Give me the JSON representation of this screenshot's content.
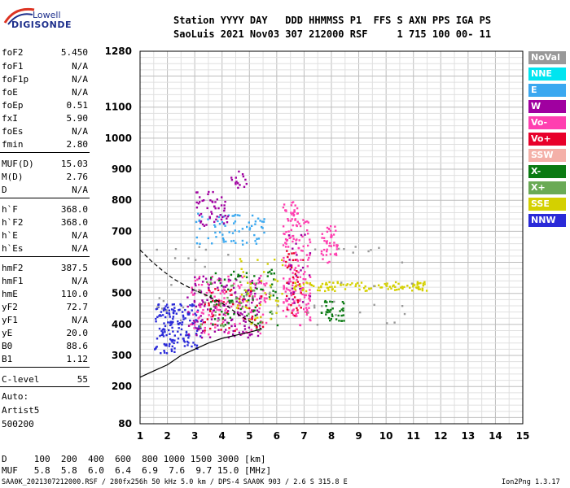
{
  "brand": {
    "line1": "Lowell",
    "line2": "DIGISONDE"
  },
  "header": {
    "row1": "Station YYYY DAY   DDD HHMMSS P1  FFS S AXN PPS IGA PS",
    "row2": "SaoLuis 2021 Nov03 307 212000 RSF     1 715 100 00- 11"
  },
  "params": [
    {
      "name": "foF2",
      "value": "5.450"
    },
    {
      "name": "foF1",
      "value": "N/A"
    },
    {
      "name": "foF1p",
      "value": "N/A"
    },
    {
      "name": "foE",
      "value": "N/A"
    },
    {
      "name": "foEp",
      "value": "0.51"
    },
    {
      "name": "fxI",
      "value": "5.90"
    },
    {
      "name": "foEs",
      "value": "N/A"
    },
    {
      "name": "fmin",
      "value": "2.80"
    },
    {
      "name": "MUF(D)",
      "value": "15.03"
    },
    {
      "name": "M(D)",
      "value": "2.76"
    },
    {
      "name": "D",
      "value": "N/A"
    },
    {
      "name": "h`F",
      "value": "368.0"
    },
    {
      "name": "h`F2",
      "value": "368.0"
    },
    {
      "name": "h`E",
      "value": "N/A"
    },
    {
      "name": "h`Es",
      "value": "N/A"
    },
    {
      "name": "hmF2",
      "value": "387.5"
    },
    {
      "name": "hmF1",
      "value": "N/A"
    },
    {
      "name": "hmE",
      "value": "110.0"
    },
    {
      "name": "yF2",
      "value": "72.7"
    },
    {
      "name": "yF1",
      "value": "N/A"
    },
    {
      "name": "yE",
      "value": "20.0"
    },
    {
      "name": "B0",
      "value": "88.6"
    },
    {
      "name": "B1",
      "value": "1.12"
    },
    {
      "name": "C-level",
      "value": "55"
    }
  ],
  "auto": {
    "line1": "Auto:",
    "line2": "Artist5",
    "line3": "500200"
  },
  "legend": [
    {
      "label": "NoVal",
      "color": "#999999"
    },
    {
      "label": "NNE",
      "color": "#00e5f0"
    },
    {
      "label": "E",
      "color": "#3aa8f0"
    },
    {
      "label": "W",
      "color": "#a000a0"
    },
    {
      "label": "Vo-",
      "color": "#ff3fb0"
    },
    {
      "label": "Vo+",
      "color": "#e8002a"
    },
    {
      "label": "SSW",
      "color": "#f4b0a8"
    },
    {
      "label": "X-",
      "color": "#0a7a12"
    },
    {
      "label": "X+",
      "color": "#6aaa55"
    },
    {
      "label": "SSE",
      "color": "#d4d000"
    },
    {
      "label": "NNW",
      "color": "#2a2ad8"
    }
  ],
  "muf_table": {
    "d_row": "D     100  200  400  600  800 1000 1500 3000 [km]",
    "muf_row": "MUF   5.8  5.8  6.0  6.4  6.9  7.6  9.7 15.0 [MHz]"
  },
  "footer": {
    "left": "SAA0K_2021307212000.RSF / 280fx256h 50 kHz 5.0 km / DPS-4 SAA0K 903 / 2.6 S 315.8 E",
    "right": "Ion2Png 1.3.17"
  },
  "chart_data": {
    "type": "scatter",
    "title": "",
    "xlabel": "",
    "ylabel": "",
    "xlim": [
      1,
      15
    ],
    "ylim": [
      80,
      1280
    ],
    "x_ticks": [
      1,
      2,
      3,
      4,
      5,
      6,
      7,
      8,
      9,
      10,
      11,
      12,
      13,
      14,
      15
    ],
    "y_ticks": [
      80,
      200,
      300,
      400,
      500,
      600,
      700,
      800,
      900,
      1000,
      1100,
      1280
    ],
    "grid": true,
    "traces": [
      {
        "name": "",
        "style": "solid",
        "x": [
          1.0,
          1.5,
          2.0,
          2.5,
          3.0,
          3.5,
          4.0,
          4.5,
          5.0,
          5.45
        ],
        "y": [
          230,
          250,
          270,
          300,
          320,
          340,
          355,
          365,
          375,
          385
        ]
      },
      {
        "name": "",
        "style": "dashed",
        "x": [
          1.0,
          1.4,
          1.8,
          2.2,
          2.6,
          3.0,
          3.4,
          3.8,
          4.2,
          4.6,
          5.0,
          5.45
        ],
        "y": [
          640,
          605,
          575,
          548,
          528,
          510,
          495,
          478,
          458,
          432,
          410,
          385
        ]
      }
    ],
    "clusters": [
      {
        "series": "NNW",
        "x": [
          1.5,
          3.2
        ],
        "y": [
          310,
          470
        ],
        "n": 160
      },
      {
        "series": "W",
        "x": [
          2.7,
          5.4
        ],
        "y": [
          360,
          560
        ],
        "n": 160
      },
      {
        "series": "Vo-",
        "x": [
          2.8,
          5.6
        ],
        "y": [
          370,
          560
        ],
        "n": 130
      },
      {
        "series": "Vo+",
        "x": [
          3.2,
          5.5
        ],
        "y": [
          380,
          520
        ],
        "n": 50
      },
      {
        "series": "X-",
        "x": [
          3.5,
          6.0
        ],
        "y": [
          400,
          580
        ],
        "n": 70
      },
      {
        "series": "X+",
        "x": [
          3.0,
          6.0
        ],
        "y": [
          380,
          540
        ],
        "n": 40
      },
      {
        "series": "SSE",
        "x": [
          4.5,
          6.2
        ],
        "y": [
          400,
          620
        ],
        "n": 45
      },
      {
        "series": "E",
        "x": [
          3.0,
          5.6
        ],
        "y": [
          660,
          760
        ],
        "n": 70
      },
      {
        "series": "W",
        "x": [
          3.0,
          4.2
        ],
        "y": [
          720,
          830
        ],
        "n": 50
      },
      {
        "series": "W",
        "x": [
          4.3,
          4.9
        ],
        "y": [
          840,
          900
        ],
        "n": 15
      },
      {
        "series": "Vo-",
        "x": [
          6.2,
          6.8
        ],
        "y": [
          420,
          800
        ],
        "n": 120
      },
      {
        "series": "Vo-",
        "x": [
          6.8,
          7.2
        ],
        "y": [
          400,
          740
        ],
        "n": 60
      },
      {
        "series": "Vo+",
        "x": [
          6.3,
          7.1
        ],
        "y": [
          430,
          640
        ],
        "n": 35
      },
      {
        "series": "W",
        "x": [
          6.4,
          7.2
        ],
        "y": [
          460,
          700
        ],
        "n": 25
      },
      {
        "series": "Vo-",
        "x": [
          7.6,
          8.2
        ],
        "y": [
          600,
          720
        ],
        "n": 45
      },
      {
        "series": "X-",
        "x": [
          7.6,
          8.5
        ],
        "y": [
          410,
          480
        ],
        "n": 35
      },
      {
        "series": "SSE",
        "x": [
          6.5,
          11.5
        ],
        "y": [
          510,
          540
        ],
        "n": 110
      },
      {
        "series": "NoVal",
        "x": [
          1.5,
          11.0
        ],
        "y": [
          400,
          660
        ],
        "n": 50
      }
    ]
  }
}
